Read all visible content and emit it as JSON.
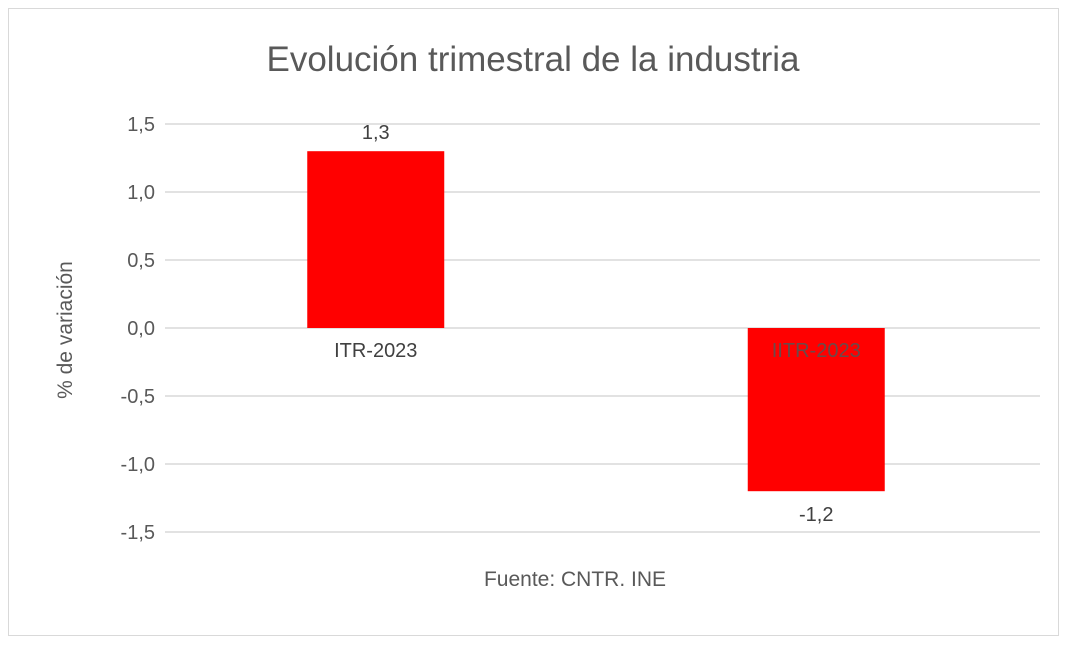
{
  "chart_data": {
    "type": "bar",
    "title": "Evolución trimestral de la industria",
    "ylabel": "% de variación",
    "xlabel": "",
    "categories": [
      "ITR-2023",
      "IITR-2023"
    ],
    "values": [
      1.3,
      -1.2
    ],
    "data_labels": [
      "1,3",
      "-1,2"
    ],
    "ylim": [
      -1.5,
      1.5
    ],
    "yticks": [
      1.5,
      1.0,
      0.5,
      0.0,
      -0.5,
      -1.0,
      -1.5
    ],
    "ytick_labels": [
      "1,5",
      "1,0",
      "0,5",
      "0,0",
      "-0,5",
      "-1,0",
      "-1,5"
    ],
    "grid": true,
    "legend": "none",
    "bar_color": "#FF0000",
    "source": "Fuente: CNTR. INE"
  }
}
